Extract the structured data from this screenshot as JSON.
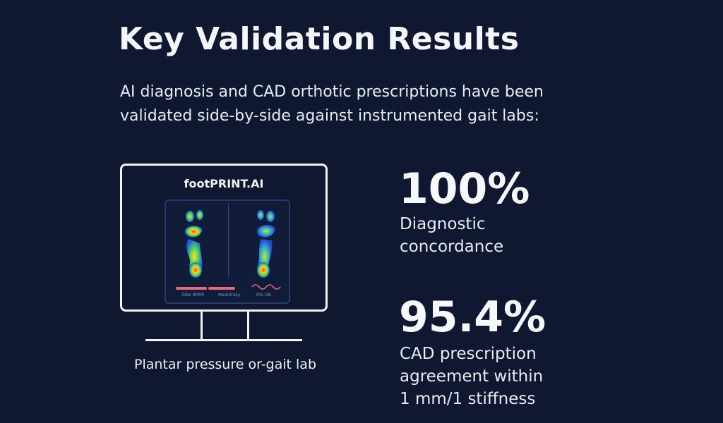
{
  "title": "Key Validation Results",
  "intro": {
    "line1": "AI diagnosis and CAD orthotic prescriptions have been",
    "line2": "validated side-by-side against instrumented gait labs:"
  },
  "monitor": {
    "brand": "footPRINT.AI",
    "labels": [
      "Tobe BMMI",
      "Medotrasy",
      "RSI GN"
    ],
    "caption": "Plantar pressure or-gait lab"
  },
  "stats": [
    {
      "value": "100%",
      "label_lines": [
        "Diagnostic",
        "concordance"
      ]
    },
    {
      "value": "95.4%",
      "label_lines": [
        "CAD prescription",
        "agreement within",
        "1 mm/1 stiffness"
      ]
    }
  ],
  "colors": {
    "background": "#0f1830",
    "accent_bar": "#e86a7a",
    "panel": "#111c3b"
  }
}
